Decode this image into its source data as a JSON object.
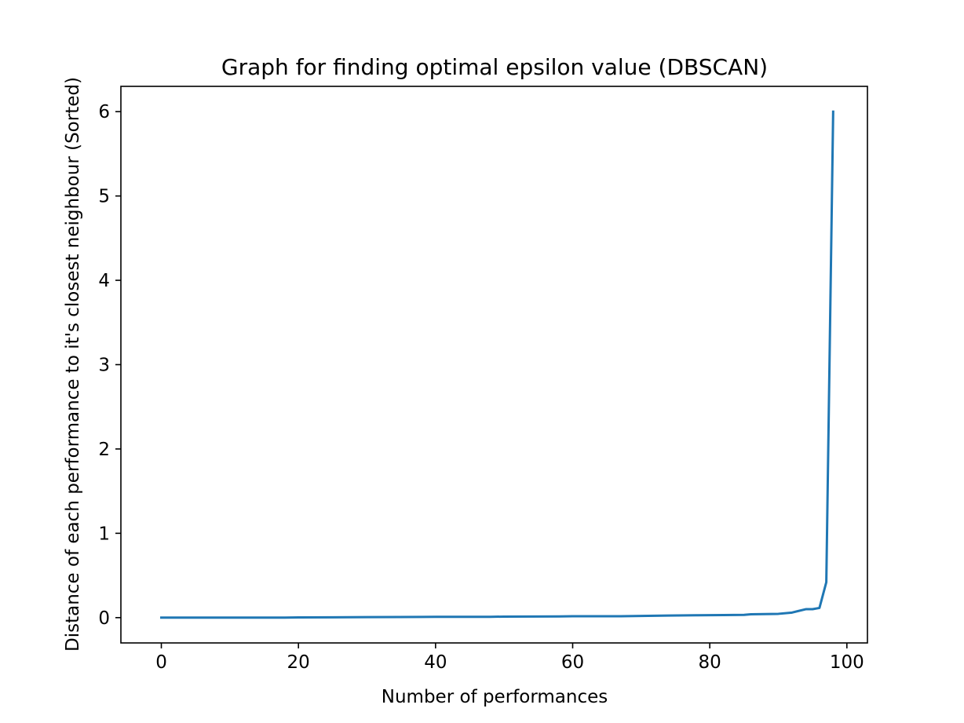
{
  "chart_data": {
    "type": "line",
    "title": "Graph for finding optimal epsilon value (DBSCAN)",
    "xlabel": "Number of performances",
    "ylabel": "Distance of each performance to it's closest neighbour (Sorted)",
    "xlim": [
      -5.9,
      103
    ],
    "ylim": [
      -0.3,
      6.3
    ],
    "xticks": [
      0,
      20,
      40,
      60,
      80,
      100
    ],
    "yticks": [
      0,
      1,
      2,
      3,
      4,
      5,
      6
    ],
    "grid": false,
    "legend": "none",
    "series": [
      {
        "color": "#1f77b4",
        "x": [
          0,
          10,
          18,
          20,
          25,
          30,
          38,
          40,
          48,
          50,
          58,
          60,
          67,
          70,
          74,
          78,
          82,
          85,
          86,
          88,
          90,
          92,
          94,
          95,
          96,
          97,
          98
        ],
        "y": [
          0.0,
          0.0,
          0.0,
          0.002,
          0.004,
          0.006,
          0.008,
          0.009,
          0.01,
          0.012,
          0.014,
          0.016,
          0.017,
          0.02,
          0.025,
          0.028,
          0.03,
          0.033,
          0.04,
          0.042,
          0.045,
          0.06,
          0.1,
          0.1,
          0.115,
          0.42,
          6.0
        ]
      }
    ]
  }
}
